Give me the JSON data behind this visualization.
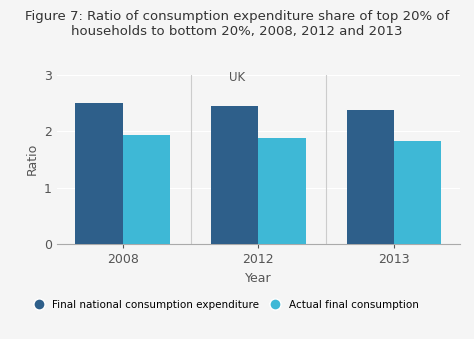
{
  "title": "Figure 7: Ratio of consumption expenditure share of top 20% of\nhouseholds to bottom 20%, 2008, 2012 and 2013",
  "subtitle": "UK",
  "xlabel": "Year",
  "ylabel": "Ratio",
  "years": [
    "2008",
    "2012",
    "2013"
  ],
  "final_national": [
    2.5,
    2.45,
    2.38
  ],
  "actual_final": [
    1.93,
    1.88,
    1.83
  ],
  "color_national": "#2e5f8a",
  "color_actual": "#3eb8d6",
  "ylim": [
    0,
    3
  ],
  "yticks": [
    0,
    1,
    2,
    3
  ],
  "legend_label_1": "Final national consumption expenditure",
  "legend_label_2": "Actual final consumption",
  "background_color": "#f5f5f5",
  "bar_width": 0.35
}
